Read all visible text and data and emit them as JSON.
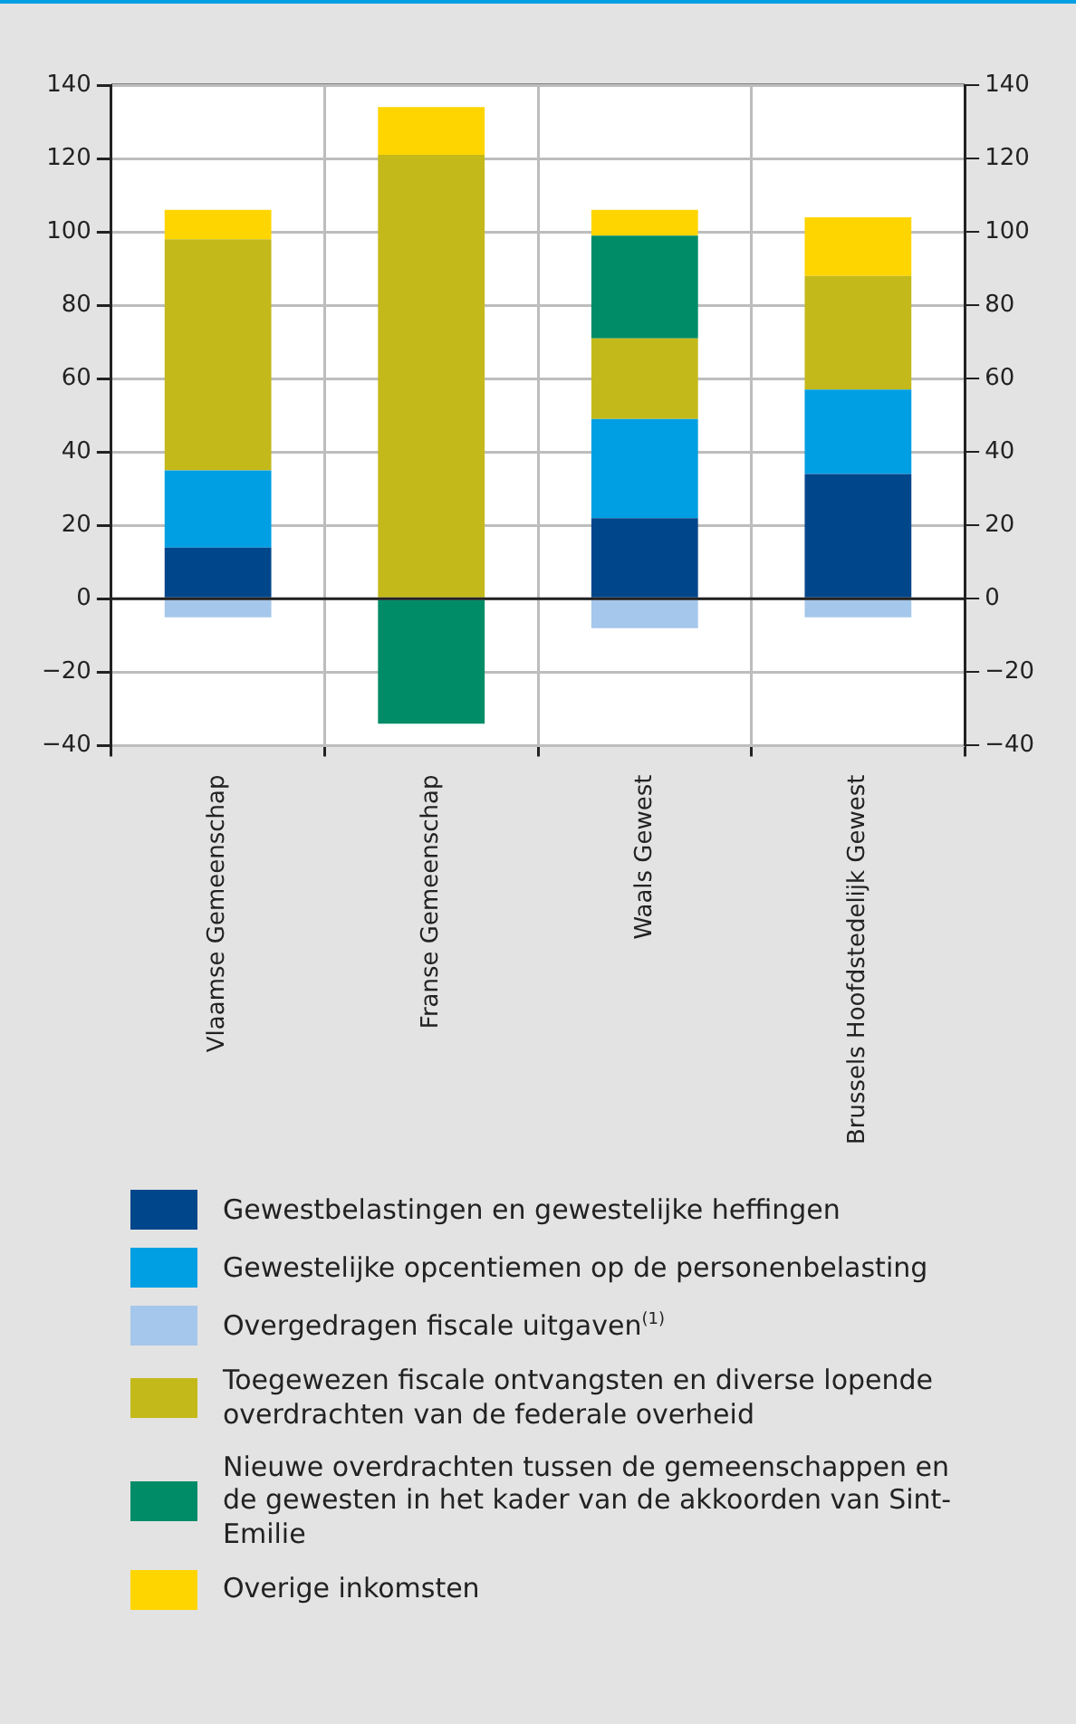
{
  "chart_data": {
    "type": "bar",
    "stacked": true,
    "categories": [
      "Vlaamse Gemeenschap",
      "Franse Gemeenschap",
      "Waals Gewest",
      "Brussels Hoofdstedelijk Gewest"
    ],
    "series": [
      {
        "name": "Gewestbelastingen en gewestelijke heffingen",
        "color": "#00468b",
        "values": [
          14,
          null,
          22,
          34
        ]
      },
      {
        "name": "Gewestelijke opcentiemen op de personenbelasting",
        "color": "#009fe3",
        "values": [
          21,
          null,
          27,
          23
        ]
      },
      {
        "name": "Overgedragen fiscale uitgaven$^{(1)}$",
        "color": "#a5c7eb",
        "values": [
          -5,
          null,
          -8,
          -5
        ]
      },
      {
        "name": "Toegewezen fiscale ontvangsten en diverse lopende overdrachten van de federale overheid",
        "color": "#c4b91a",
        "values": [
          63,
          121,
          22,
          31
        ]
      },
      {
        "name": "Nieuwe overdrachten tussen de gemeenschappen en de gewesten in het kader van de akkoorden van Sint-Emilie",
        "color": "#008c67",
        "values": [
          null,
          -34,
          28,
          null
        ]
      },
      {
        "name": "Overige inkomsten",
        "color": "#ffd500",
        "values": [
          8,
          13,
          7,
          16
        ]
      }
    ],
    "ylim": [
      -40,
      140
    ],
    "yticks": [
      -40,
      -20,
      0,
      20,
      40,
      60,
      80,
      100,
      120,
      140
    ],
    "y2lim": [
      -40,
      140
    ],
    "y2ticks": [
      -40,
      -20,
      0,
      20,
      40,
      60,
      80,
      100,
      120,
      140
    ],
    "grid": true,
    "legend": "bottom"
  }
}
